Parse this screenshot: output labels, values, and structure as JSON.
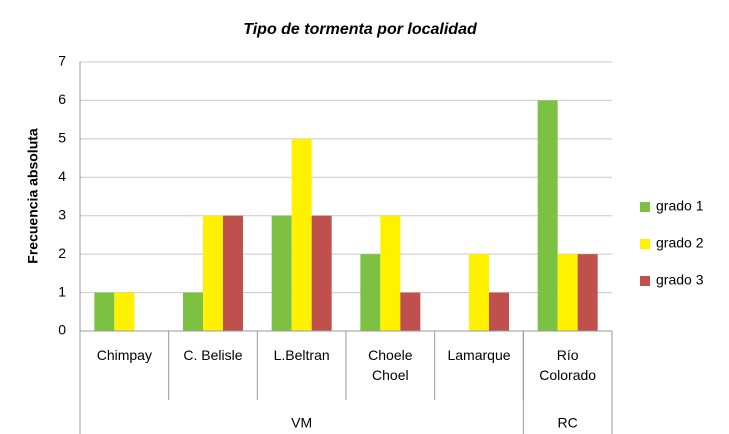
{
  "chart_data": {
    "type": "bar",
    "title": "Tipo de tormenta por localidad",
    "y_label": "Frecuencia absoluta",
    "categories": [
      "Chimpay",
      "C. Belisle",
      "L.Beltran",
      "Choele Choel",
      "Lamarque",
      "Río Colorado"
    ],
    "groups": [
      {
        "name": "VM",
        "count": 5
      },
      {
        "name": "RC",
        "count": 1
      }
    ],
    "series": [
      {
        "name": "grado 1",
        "color": "#7cc142",
        "values": [
          1,
          1,
          3,
          2,
          0,
          6
        ]
      },
      {
        "name": "grado 2",
        "color": "#fff200",
        "values": [
          1,
          3,
          5,
          3,
          2,
          2
        ]
      },
      {
        "name": "grado 3",
        "color": "#c0504d",
        "values": [
          0,
          3,
          3,
          1,
          1,
          2
        ]
      }
    ],
    "ylim": [
      0,
      7
    ],
    "yticks": [
      0,
      1,
      2,
      3,
      4,
      5,
      6,
      7
    ],
    "grid": true,
    "legend": "right"
  }
}
